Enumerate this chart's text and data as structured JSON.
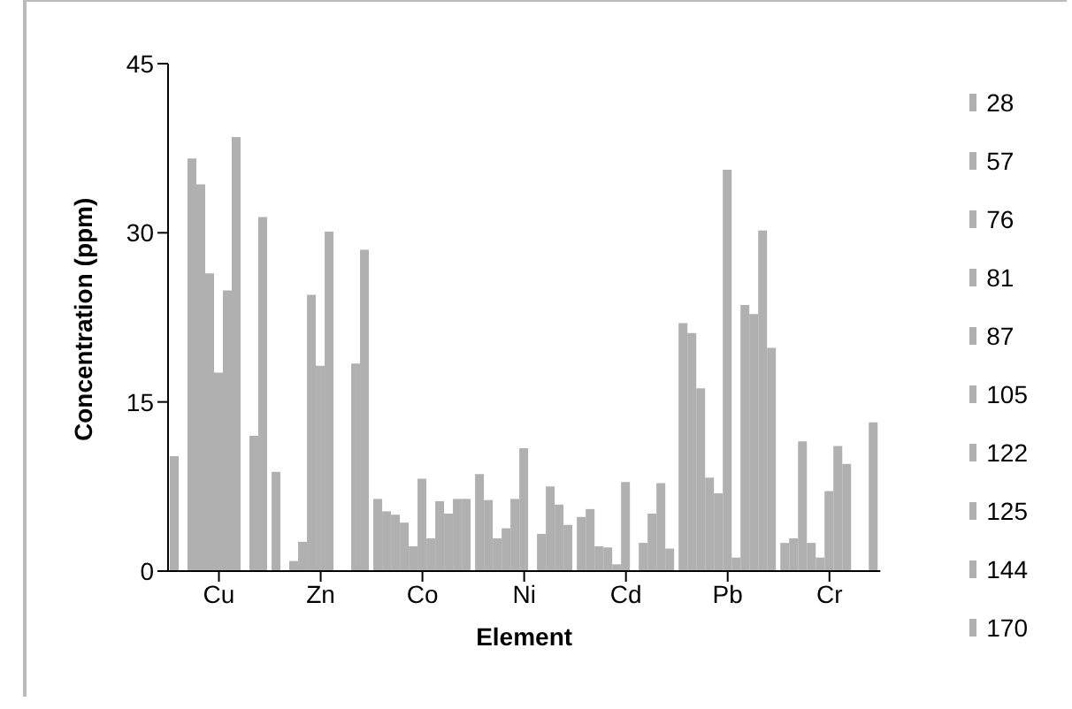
{
  "chart_data": {
    "type": "bar",
    "xlabel": "Element",
    "ylabel": "Concentration (ppm)",
    "categories": [
      "Cu",
      "Zn",
      "Co",
      "Ni",
      "Cd",
      "Pb",
      "Cr"
    ],
    "ylim": [
      0,
      45
    ],
    "yticks": [
      0,
      15,
      30,
      45
    ],
    "grid": false,
    "legend": "right",
    "series": [
      {
        "name": "28",
        "color": "#b0b0b0",
        "values": [
          10.2,
          8.8,
          6.4,
          8.6,
          4.8,
          22.0,
          2.5
        ]
      },
      {
        "name": "57",
        "color": "#b0b0b0",
        "values": [
          0,
          0,
          5.3,
          6.3,
          5.5,
          21.1,
          2.9
        ]
      },
      {
        "name": "76",
        "color": "#b0b0b0",
        "values": [
          36.6,
          0.9,
          5.0,
          2.9,
          2.2,
          16.2,
          11.5
        ]
      },
      {
        "name": "81",
        "color": "#b0b0b0",
        "values": [
          34.3,
          2.6,
          4.3,
          3.8,
          2.1,
          8.3,
          2.5
        ]
      },
      {
        "name": "87",
        "color": "#b0b0b0",
        "values": [
          26.4,
          24.5,
          2.2,
          6.4,
          0.6,
          6.9,
          1.2
        ]
      },
      {
        "name": "105",
        "color": "#b0b0b0",
        "values": [
          17.6,
          18.2,
          8.2,
          10.9,
          7.9,
          35.6,
          7.1
        ]
      },
      {
        "name": "122",
        "color": "#b0b0b0",
        "values": [
          24.9,
          30.1,
          2.9,
          0,
          0,
          1.2,
          11.1
        ]
      },
      {
        "name": "125",
        "color": "#b0b0b0",
        "values": [
          38.5,
          0,
          6.2,
          3.3,
          2.5,
          23.6,
          9.5
        ]
      },
      {
        "name": "144",
        "color": "#b0b0b0",
        "values": [
          0,
          0,
          5.1,
          7.5,
          5.1,
          22.8,
          0
        ]
      },
      {
        "name": "170",
        "color": "#b0b0b0",
        "values": [
          12.0,
          18.4,
          6.4,
          5.9,
          7.8,
          30.2,
          0
        ]
      },
      {
        "color": "#b0b0b0",
        "values": [
          31.4,
          28.5,
          6.4,
          4.1,
          2.0,
          19.8,
          13.2
        ]
      }
    ]
  }
}
